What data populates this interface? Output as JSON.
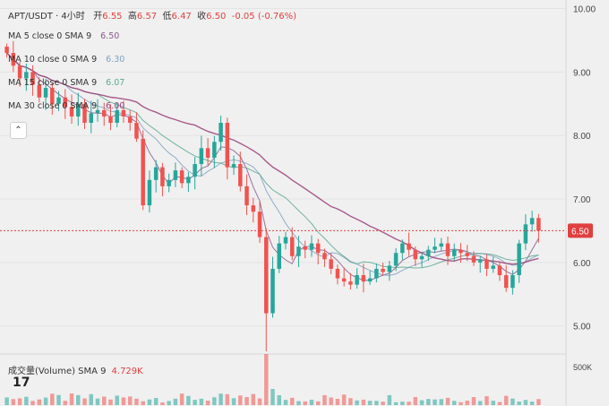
{
  "header": {
    "symbol": "APT/USDT · 4小时",
    "open_label": "开",
    "open": "6.55",
    "high_label": "高",
    "high": "6.57",
    "low_label": "低",
    "low": "6.47",
    "close_label": "收",
    "close": "6.50",
    "change": "-0.05 (-0.76%)"
  },
  "indicators": [
    {
      "name": "MA 5 close 0 SMA 9",
      "value": "6.50",
      "color": "#8a5a8f"
    },
    {
      "name": "MA 10 close 0 SMA 9",
      "value": "6.30",
      "color": "#7fa2c4"
    },
    {
      "name": "MA 15 close 0 SMA 9",
      "value": "6.07",
      "color": "#5aa88f"
    },
    {
      "name": "MA 30 close 0 SMA 9",
      "value": "6.00",
      "color": "#9b3f7a"
    }
  ],
  "collapse_icon": "chevron-up-icon",
  "volume_label": "成交量(Volume) SMA 9",
  "volume_value": "4.729K",
  "volume_axis_label": "500K",
  "logo_text": "17",
  "colors": {
    "up": "#26a69a",
    "down": "#ef5350",
    "price_line": "#e0403f",
    "grid": "#e4e4e4"
  },
  "chart_data": {
    "type": "candlestick",
    "ylim": [
      4.6,
      10.05
    ],
    "yticks": [
      "10.00",
      "9.00",
      "8.00",
      "7.00",
      "6.00",
      "5.00"
    ],
    "last_price": "6.50",
    "close": [
      9.3,
      9.1,
      8.9,
      9.0,
      8.8,
      8.6,
      8.75,
      8.5,
      8.6,
      8.45,
      8.3,
      8.5,
      8.2,
      8.35,
      8.4,
      8.3,
      8.2,
      8.4,
      8.3,
      8.2,
      7.95,
      6.9,
      7.3,
      7.5,
      7.2,
      7.3,
      7.45,
      7.25,
      7.35,
      7.55,
      7.8,
      7.65,
      7.9,
      8.2,
      7.5,
      7.55,
      7.2,
      6.9,
      6.8,
      6.4,
      5.2,
      5.9,
      6.3,
      6.4,
      6.1,
      6.25,
      6.2,
      6.3,
      6.15,
      6.05,
      5.9,
      5.75,
      5.7,
      5.65,
      5.8,
      5.7,
      5.75,
      5.9,
      5.85,
      5.95,
      6.15,
      6.3,
      6.2,
      6.05,
      6.1,
      6.2,
      6.25,
      6.3,
      6.1,
      6.2,
      6.15,
      6.1,
      6.0,
      6.05,
      5.9,
      5.95,
      5.8,
      5.6,
      5.8,
      6.3,
      6.6,
      6.7,
      6.5
    ],
    "volume_peak_index": 40
  }
}
